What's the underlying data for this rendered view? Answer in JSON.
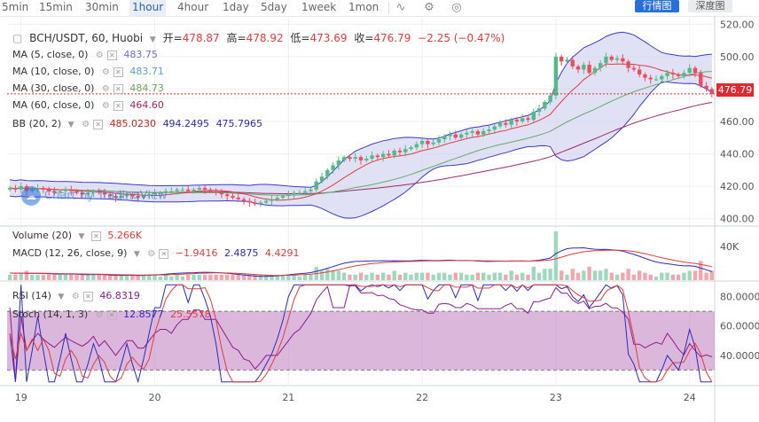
{
  "toolbar": {
    "timeframes": [
      "5min",
      "15min",
      "30min",
      "1hour",
      "4hour",
      "1day",
      "5day",
      "1week",
      "1mon"
    ],
    "active_timeframe": "1hour",
    "mode_buttons": [
      "行情图",
      "深度图"
    ]
  },
  "header": {
    "symbol_line": "BCH/USDT, 60, Huobi",
    "open_label": "开=",
    "open": "478.87",
    "high_label": "高=",
    "high": "478.92",
    "low_label": "低=",
    "low": "473.69",
    "close_label": "收=",
    "close": "476.79",
    "change": "−2.25 (−0.47%)"
  },
  "indicators": {
    "ma5": {
      "label": "MA (5, close, 0)",
      "value": "483.75",
      "color": "#6d6dd1"
    },
    "ma10": {
      "label": "MA (10, close, 0)",
      "value": "483.71",
      "color": "#5aa0c8"
    },
    "ma30": {
      "label": "MA (30, close, 0)",
      "value": "484.73",
      "color": "#6aa85c"
    },
    "ma60": {
      "label": "MA (60, close, 0)",
      "value": "464.60",
      "color": "#a0286e"
    },
    "bb": {
      "label": "BB (20, 2)",
      "basis": "485.0230",
      "upper": "494.2495",
      "lower": "475.7965",
      "basis_color": "#d02020",
      "band_color": "#2b2bb8"
    },
    "volume": {
      "label": "Volume (20)",
      "value": "5.266K"
    },
    "macd": {
      "label": "MACD (12, 26, close, 9)",
      "hist": "−1.9416",
      "macd": "2.4875",
      "signal": "4.4291"
    },
    "rsi": {
      "label": "RSI (14)",
      "value": "46.8319"
    },
    "stoch": {
      "label": "Stoch (14, 1, 3)",
      "k": "12.8577",
      "d": "25.5578"
    }
  },
  "last_price_tag": "476.79",
  "watermark": "Chart by TradingView",
  "colors": {
    "up": "#53b987",
    "down": "#eb4d5c",
    "ma_red": "#e03c3c",
    "ma_green": "#5fae6a",
    "band": "#3a3ac8"
  },
  "chart_data": {
    "type": "candlestick",
    "x_labels": [
      {
        "label": "19",
        "index": 2
      },
      {
        "label": "20",
        "index": 26
      },
      {
        "label": "21",
        "index": 50
      },
      {
        "label": "22",
        "index": 74
      },
      {
        "label": "23",
        "index": 98
      },
      {
        "label": "24",
        "index": 122
      }
    ],
    "price_axis": {
      "ticks": [
        "520.00",
        "500.00",
        "480.00",
        "460.00",
        "440.00",
        "420.00",
        "400.00"
      ],
      "range": [
        396,
        524
      ]
    },
    "volume_axis": {
      "ticks": [
        "40K"
      ]
    },
    "rsi_axis": {
      "ticks": [
        "80.0000",
        "60.0000",
        "40.0000"
      ],
      "range": [
        20,
        90
      ],
      "levels": [
        70,
        30
      ]
    },
    "close": [
      419,
      418,
      420,
      417,
      418,
      419,
      418,
      417,
      416,
      417,
      418,
      417,
      416,
      415,
      416,
      417,
      416,
      415,
      414,
      413,
      414,
      415,
      414,
      413,
      414,
      415,
      416,
      416,
      417,
      417,
      418,
      418,
      417,
      418,
      419,
      418,
      417,
      416,
      415,
      414,
      413,
      412,
      411,
      410,
      409,
      410,
      411,
      412,
      413,
      414,
      415,
      416,
      416,
      417,
      418,
      423,
      426,
      430,
      433,
      436,
      438,
      437,
      438,
      436,
      437,
      439,
      438,
      440,
      439,
      442,
      441,
      443,
      444,
      446,
      448,
      446,
      447,
      449,
      451,
      452,
      450,
      452,
      453,
      454,
      452,
      454,
      455,
      457,
      459,
      458,
      461,
      460,
      462,
      461,
      466,
      468,
      472,
      476,
      500,
      497,
      498,
      494,
      492,
      495,
      490,
      493,
      496,
      500,
      498,
      499,
      497,
      493,
      492,
      489,
      487,
      486,
      486,
      488,
      490,
      489,
      488,
      490,
      493,
      490,
      482,
      480,
      477
    ]
  }
}
